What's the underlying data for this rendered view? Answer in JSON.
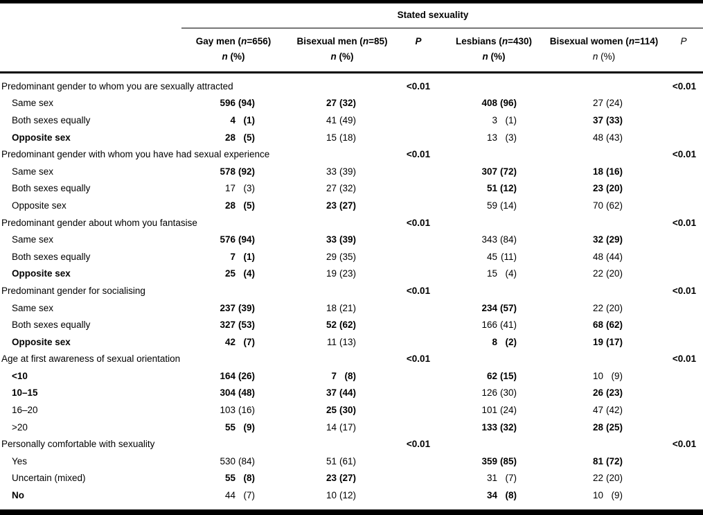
{
  "table": {
    "spanner": "Stated sexuality",
    "groups": [
      {
        "title_prefix": "Gay men (",
        "title_n": "n",
        "title_suffix": "=656)",
        "sub_n": "n",
        "sub_rest": "(%)",
        "sub_bold": true
      },
      {
        "title_prefix": "Bisexual men (",
        "title_n": "n",
        "title_suffix": "=85)",
        "sub_n": "n",
        "sub_rest": "(%)",
        "sub_bold": true
      },
      {
        "title_prefix": "Lesbians (",
        "title_n": "n",
        "title_suffix": "=430)",
        "sub_n": "n",
        "sub_rest": "(%)",
        "sub_bold": true
      },
      {
        "title_prefix": "Bisexual women (",
        "title_n": "n",
        "title_suffix": "=114)",
        "sub_n": "n",
        "sub_rest": "(%)",
        "sub_bold": false
      }
    ],
    "p_header_men": "P",
    "p_header_women": "P",
    "sections": [
      {
        "label": "Predominant gender to whom you are sexually attracted",
        "p_men": "<0.01",
        "p_women": "<0.01",
        "rows": [
          {
            "label": "Same sex",
            "label_bold": false,
            "cells": [
              {
                "n": "596",
                "pct": "(94)",
                "bold": true
              },
              {
                "n": "27",
                "pct": "(32)",
                "bold": true
              },
              {
                "n": "408",
                "pct": "(96)",
                "bold": true
              },
              {
                "n": "27",
                "pct": "(24)",
                "bold": false
              }
            ]
          },
          {
            "label": "Both sexes equally",
            "label_bold": false,
            "cells": [
              {
                "n": "4",
                "pct": "(1)",
                "bold": true
              },
              {
                "n": "41",
                "pct": "(49)",
                "bold": false
              },
              {
                "n": "3",
                "pct": "(1)",
                "bold": false
              },
              {
                "n": "37",
                "pct": "(33)",
                "bold": true
              }
            ]
          },
          {
            "label": "Opposite sex",
            "label_bold": true,
            "cells": [
              {
                "n": "28",
                "pct": "(5)",
                "bold": true
              },
              {
                "n": "15",
                "pct": "(18)",
                "bold": false
              },
              {
                "n": "13",
                "pct": "(3)",
                "bold": false
              },
              {
                "n": "48",
                "pct": "(43)",
                "bold": false
              }
            ]
          }
        ]
      },
      {
        "label": "Predominant gender with whom you have had sexual experience",
        "p_men": "<0.01",
        "p_women": "<0.01",
        "rows": [
          {
            "label": "Same sex",
            "label_bold": false,
            "cells": [
              {
                "n": "578",
                "pct": "(92)",
                "bold": true
              },
              {
                "n": "33",
                "pct": "(39)",
                "bold": false
              },
              {
                "n": "307",
                "pct": "(72)",
                "bold": true
              },
              {
                "n": "18",
                "pct": "(16)",
                "bold": true
              }
            ]
          },
          {
            "label": "Both sexes equally",
            "label_bold": false,
            "cells": [
              {
                "n": "17",
                "pct": "(3)",
                "bold": false
              },
              {
                "n": "27",
                "pct": "(32)",
                "bold": false
              },
              {
                "n": "51",
                "pct": "(12)",
                "bold": true
              },
              {
                "n": "23",
                "pct": "(20)",
                "bold": true
              }
            ]
          },
          {
            "label": "Opposite sex",
            "label_bold": false,
            "cells": [
              {
                "n": "28",
                "pct": "(5)",
                "bold": true
              },
              {
                "n": "23",
                "pct": "(27)",
                "bold": true
              },
              {
                "n": "59",
                "pct": "(14)",
                "bold": false
              },
              {
                "n": "70",
                "pct": "(62)",
                "bold": false
              }
            ]
          }
        ]
      },
      {
        "label": "Predominant gender about whom you fantasise",
        "p_men": "<0.01",
        "p_women": "<0.01",
        "rows": [
          {
            "label": "Same sex",
            "label_bold": false,
            "cells": [
              {
                "n": "576",
                "pct": "(94)",
                "bold": true
              },
              {
                "n": "33",
                "pct": "(39)",
                "bold": true
              },
              {
                "n": "343",
                "pct": "(84)",
                "bold": false
              },
              {
                "n": "32",
                "pct": "(29)",
                "bold": true
              }
            ]
          },
          {
            "label": "Both sexes equally",
            "label_bold": false,
            "cells": [
              {
                "n": "7",
                "pct": "(1)",
                "bold": true
              },
              {
                "n": "29",
                "pct": "(35)",
                "bold": false
              },
              {
                "n": "45",
                "pct": "(11)",
                "bold": false
              },
              {
                "n": "48",
                "pct": "(44)",
                "bold": false
              }
            ]
          },
          {
            "label": "Opposite sex",
            "label_bold": true,
            "cells": [
              {
                "n": "25",
                "pct": "(4)",
                "bold": true
              },
              {
                "n": "19",
                "pct": "(23)",
                "bold": false
              },
              {
                "n": "15",
                "pct": "(4)",
                "bold": false
              },
              {
                "n": "22",
                "pct": "(20)",
                "bold": false
              }
            ]
          }
        ]
      },
      {
        "label": "Predominant gender for socialising",
        "p_men": "<0.01",
        "p_women": "<0.01",
        "rows": [
          {
            "label": "Same sex",
            "label_bold": false,
            "cells": [
              {
                "n": "237",
                "pct": "(39)",
                "bold": true
              },
              {
                "n": "18",
                "pct": "(21)",
                "bold": false
              },
              {
                "n": "234",
                "pct": "(57)",
                "bold": true
              },
              {
                "n": "22",
                "pct": "(20)",
                "bold": false
              }
            ]
          },
          {
            "label": "Both sexes equally",
            "label_bold": false,
            "cells": [
              {
                "n": "327",
                "pct": "(53)",
                "bold": true
              },
              {
                "n": "52",
                "pct": "(62)",
                "bold": true
              },
              {
                "n": "166",
                "pct": "(41)",
                "bold": false
              },
              {
                "n": "68",
                "pct": "(62)",
                "bold": true
              }
            ]
          },
          {
            "label": "Opposite sex",
            "label_bold": true,
            "cells": [
              {
                "n": "42",
                "pct": "(7)",
                "bold": true
              },
              {
                "n": "11",
                "pct": "(13)",
                "bold": false
              },
              {
                "n": "8",
                "pct": "(2)",
                "bold": true
              },
              {
                "n": "19",
                "pct": "(17)",
                "bold": true
              }
            ]
          }
        ]
      },
      {
        "label": "Age at first awareness of sexual orientation",
        "p_men": "<0.01",
        "p_women": "<0.01",
        "rows": [
          {
            "label": "<10",
            "label_bold": true,
            "cells": [
              {
                "n": "164",
                "pct": "(26)",
                "bold": true
              },
              {
                "n": "7",
                "pct": "(8)",
                "bold": true
              },
              {
                "n": "62",
                "pct": "(15)",
                "bold": true
              },
              {
                "n": "10",
                "pct": "(9)",
                "bold": false
              }
            ]
          },
          {
            "label": "10–15",
            "label_bold": true,
            "cells": [
              {
                "n": "304",
                "pct": "(48)",
                "bold": true
              },
              {
                "n": "37",
                "pct": "(44)",
                "bold": true
              },
              {
                "n": "126",
                "pct": "(30)",
                "bold": false
              },
              {
                "n": "26",
                "pct": "(23)",
                "bold": true
              }
            ]
          },
          {
            "label": "16–20",
            "label_bold": false,
            "cells": [
              {
                "n": "103",
                "pct": "(16)",
                "bold": false
              },
              {
                "n": "25",
                "pct": "(30)",
                "bold": true
              },
              {
                "n": "101",
                "pct": "(24)",
                "bold": false
              },
              {
                "n": "47",
                "pct": "(42)",
                "bold": false
              }
            ]
          },
          {
            "label": ">20",
            "label_bold": false,
            "cells": [
              {
                "n": "55",
                "pct": "(9)",
                "bold": true
              },
              {
                "n": "14",
                "pct": "(17)",
                "bold": false
              },
              {
                "n": "133",
                "pct": "(32)",
                "bold": true
              },
              {
                "n": "28",
                "pct": "(25)",
                "bold": true
              }
            ]
          }
        ]
      },
      {
        "label": "Personally comfortable with sexuality",
        "p_men": "<0.01",
        "p_women": "<0.01",
        "rows": [
          {
            "label": "Yes",
            "label_bold": false,
            "cells": [
              {
                "n": "530",
                "pct": "(84)",
                "bold": false
              },
              {
                "n": "51",
                "pct": "(61)",
                "bold": false
              },
              {
                "n": "359",
                "pct": "(85)",
                "bold": true
              },
              {
                "n": "81",
                "pct": "(72)",
                "bold": true
              }
            ]
          },
          {
            "label": "Uncertain (mixed)",
            "label_bold": false,
            "cells": [
              {
                "n": "55",
                "pct": "(8)",
                "bold": true
              },
              {
                "n": "23",
                "pct": "(27)",
                "bold": true
              },
              {
                "n": "31",
                "pct": "(7)",
                "bold": false
              },
              {
                "n": "22",
                "pct": "(20)",
                "bold": false
              }
            ]
          },
          {
            "label": "No",
            "label_bold": true,
            "cells": [
              {
                "n": "44",
                "pct": "(7)",
                "bold": false
              },
              {
                "n": "10",
                "pct": "(12)",
                "bold": false
              },
              {
                "n": "34",
                "pct": "(8)",
                "bold": true
              },
              {
                "n": "10",
                "pct": "(9)",
                "bold": false
              }
            ]
          }
        ]
      }
    ]
  }
}
